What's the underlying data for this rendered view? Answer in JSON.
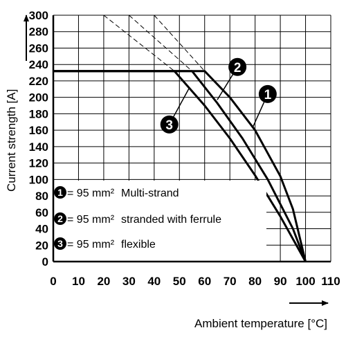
{
  "chart_data": {
    "type": "line",
    "title": "",
    "xlabel": "Ambient temperature [°C]",
    "ylabel": "Current strength [A]",
    "xlim": [
      0,
      110
    ],
    "ylim": [
      0,
      300
    ],
    "x_ticks": [
      "0",
      "10",
      "20",
      "30",
      "40",
      "50",
      "60",
      "70",
      "80",
      "90",
      "100",
      "110"
    ],
    "y_ticks": [
      "0",
      "20",
      "40",
      "60",
      "80",
      "100",
      "120",
      "140",
      "160",
      "180",
      "200",
      "220",
      "240",
      "260",
      "280",
      "300"
    ],
    "grid": true,
    "series": [
      {
        "name": "1",
        "points": [
          [
            0,
            232
          ],
          [
            60,
            232
          ],
          [
            70,
            200
          ],
          [
            80,
            160
          ],
          [
            90,
            104
          ],
          [
            95,
            64
          ],
          [
            100,
            0
          ]
        ],
        "extension": [
          [
            40,
            300
          ],
          [
            60,
            232
          ]
        ]
      },
      {
        "name": "2",
        "points": [
          [
            0,
            232
          ],
          [
            55,
            232
          ],
          [
            65,
            193
          ],
          [
            75,
            150
          ],
          [
            85,
            100
          ],
          [
            95,
            40
          ],
          [
            100,
            0
          ]
        ],
        "extension": [
          [
            30,
            300
          ],
          [
            55,
            232
          ]
        ]
      },
      {
        "name": "3",
        "points": [
          [
            0,
            232
          ],
          [
            48,
            232
          ],
          [
            60,
            190
          ],
          [
            70,
            150
          ],
          [
            80,
            105
          ],
          [
            90,
            55
          ],
          [
            100,
            0
          ]
        ],
        "extension": [
          [
            20,
            300
          ],
          [
            48,
            232
          ]
        ]
      }
    ],
    "callouts": [
      {
        "label": "1",
        "at": [
          85,
          204
        ],
        "points_to": [
          79,
          163
        ]
      },
      {
        "label": "2",
        "at": [
          73,
          237
        ],
        "points_to": [
          65,
          197
        ]
      },
      {
        "label": "3",
        "at": [
          46,
          167
        ],
        "points_to": [
          54,
          212
        ]
      }
    ],
    "legend": {
      "position": "bottom-left",
      "entries": [
        {
          "badge": "1",
          "label": "= 95 mm²",
          "desc": "Multi-strand"
        },
        {
          "badge": "2",
          "label": "= 95 mm²",
          "desc": "stranded with ferrule"
        },
        {
          "badge": "3",
          "label": "= 95 mm²",
          "desc": "flexible"
        }
      ]
    }
  }
}
